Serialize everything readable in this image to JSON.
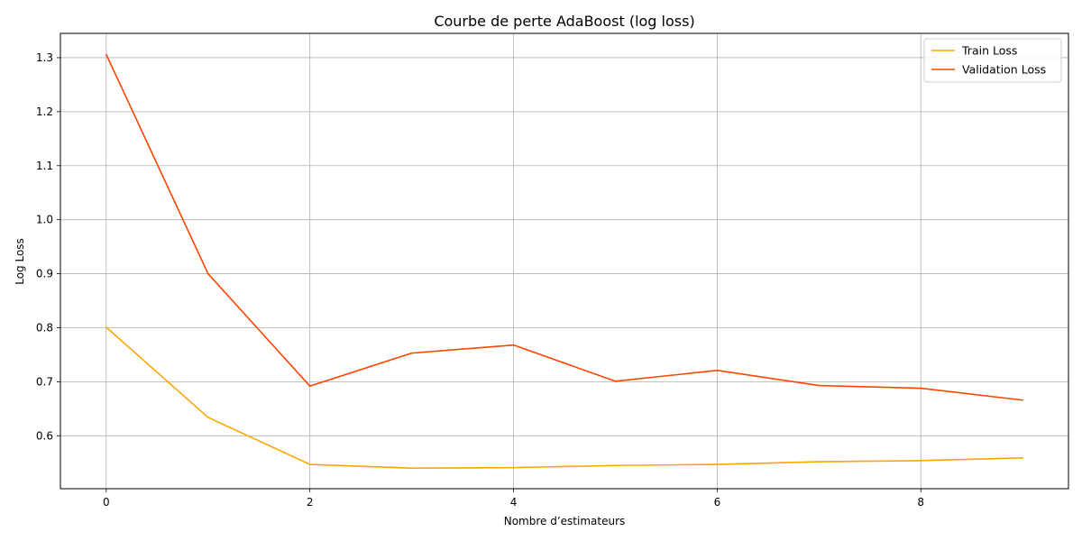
{
  "chart_data": {
    "type": "line",
    "title": "Courbe de perte AdaBoost (log loss)",
    "xlabel": "Nombre d’estimateurs",
    "ylabel": "Log Loss",
    "x": [
      0,
      1,
      2,
      3,
      4,
      5,
      6,
      7,
      8,
      9
    ],
    "xticks": [
      0,
      2,
      4,
      6,
      8
    ],
    "yticks": [
      0.6,
      0.7,
      0.8,
      0.9,
      1.0,
      1.1,
      1.2,
      1.3
    ],
    "xlim": [
      -0.45,
      9.45
    ],
    "ylim": [
      0.502,
      1.345
    ],
    "grid": true,
    "legend_position": "top-right",
    "series": [
      {
        "name": "Train Loss",
        "color": "#ffa500",
        "values": [
          0.801,
          0.634,
          0.547,
          0.54,
          0.541,
          0.545,
          0.547,
          0.552,
          0.554,
          0.559
        ]
      },
      {
        "name": "Validation Loss",
        "color": "#ff4500",
        "values": [
          1.306,
          0.9,
          0.692,
          0.753,
          0.768,
          0.701,
          0.721,
          0.693,
          0.688,
          0.666
        ]
      }
    ]
  }
}
